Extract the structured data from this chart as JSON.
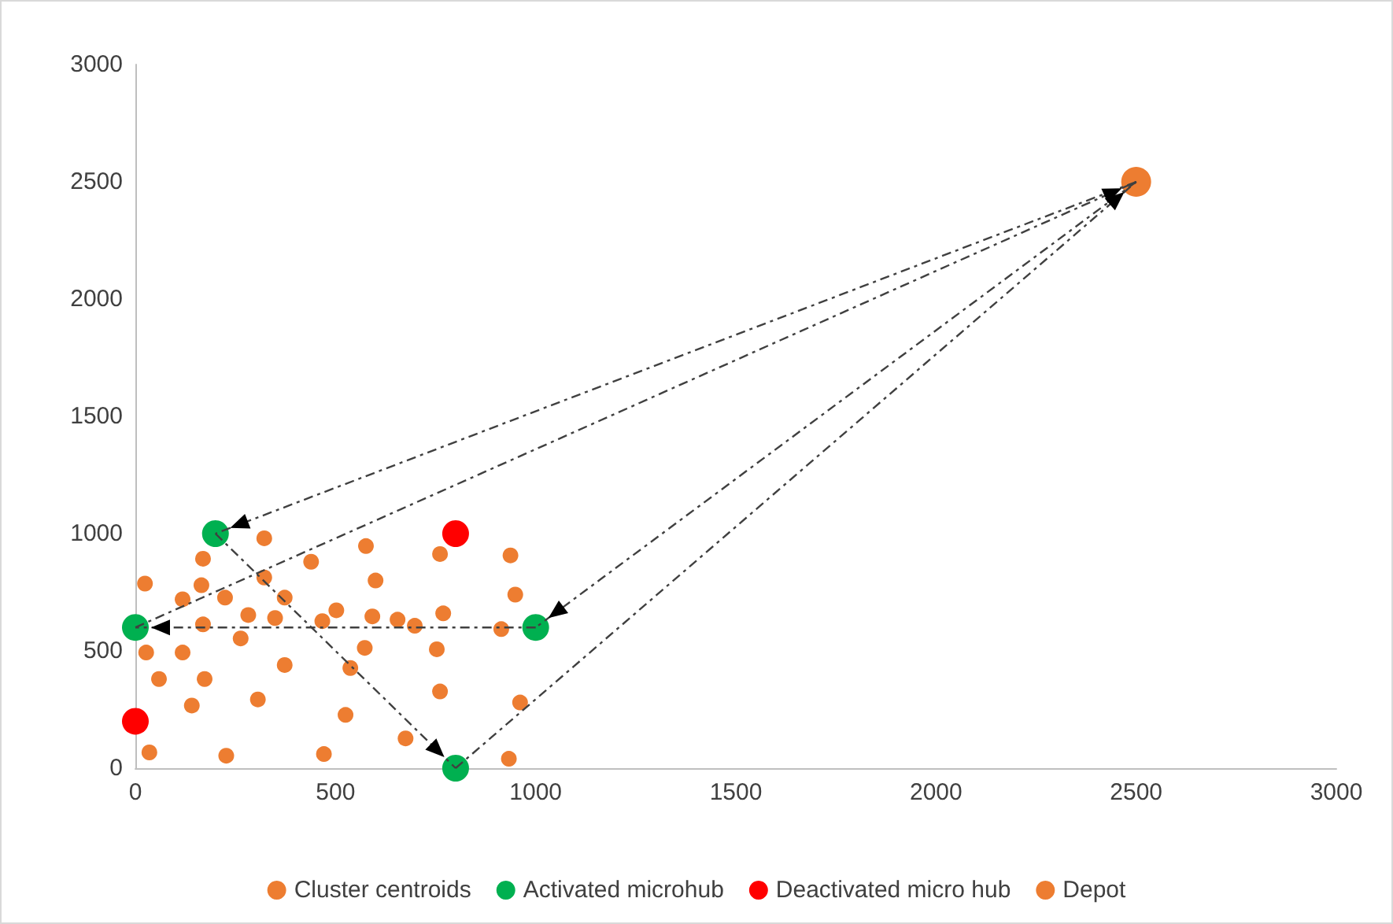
{
  "chart_data": {
    "type": "scatter",
    "xlim": [
      0,
      3000
    ],
    "ylim": [
      0,
      3000
    ],
    "xticks": [
      0,
      500,
      1000,
      1500,
      2000,
      2500,
      3000
    ],
    "yticks": [
      0,
      500,
      1000,
      1500,
      2000,
      2500,
      3000
    ],
    "grid": false,
    "legend": "bottom",
    "marker": "circle",
    "series": [
      {
        "name": "Cluster centroids",
        "color": "#ed7d31",
        "x": [
          322,
          169,
          439,
          24,
          165,
          322,
          118,
          224,
          373,
          282,
          349,
          169,
          null,
          263,
          27,
          118,
          373,
          59,
          173,
          141,
          306,
          35,
          227,
          576,
          761,
          937,
          600,
          949,
          502,
          467,
          592,
          655,
          698,
          769,
          914,
          573,
          753,
          537,
          761,
          961,
          525,
          675,
          471,
          933
        ],
        "values": [
          980,
          893,
          880,
          787,
          780,
          813,
          720,
          727,
          727,
          653,
          640,
          613,
          null,
          553,
          493,
          493,
          440,
          380,
          380,
          267,
          293,
          67,
          53,
          947,
          913,
          907,
          800,
          740,
          673,
          627,
          647,
          633,
          607,
          660,
          593,
          513,
          507,
          427,
          327,
          280,
          227,
          127,
          60,
          40
        ]
      },
      {
        "name": "Activated microhub",
        "color": "#00b050",
        "x": [
          200,
          0,
          1000,
          800
        ],
        "values": [
          1000,
          600,
          600,
          0
        ]
      },
      {
        "name": "Deactivated micro hub",
        "color": "#ff0000",
        "x": [
          800,
          0
        ],
        "values": [
          1000,
          200
        ]
      },
      {
        "name": "Depot",
        "color": "#ed7d31",
        "x": [
          2500
        ],
        "values": [
          2500
        ]
      },
      {
        "type": "line",
        "color": "#404040",
        "line_style": "dashed",
        "marker": "none",
        "x": [
          2500,
          200
        ],
        "values": [
          2500,
          1000
        ]
      },
      {
        "type": "line",
        "color": "#404040",
        "line_style": "dashed",
        "marker": "none",
        "x": [
          200,
          800
        ],
        "values": [
          1000,
          0
        ]
      },
      {
        "type": "line",
        "color": "#404040",
        "line_style": "dashed",
        "marker": "none",
        "x": [
          800,
          2500
        ],
        "values": [
          0,
          2500
        ]
      },
      {
        "type": "line",
        "color": "#404040",
        "line_style": "dashed",
        "marker": "none",
        "x": [
          2500,
          1000
        ],
        "values": [
          2500,
          600
        ]
      },
      {
        "type": "line",
        "color": "#404040",
        "line_style": "dashed",
        "marker": "none",
        "x": [
          1000,
          0
        ],
        "values": [
          600,
          600
        ]
      },
      {
        "type": "line",
        "color": "#404040",
        "line_style": "dashed",
        "marker": "none",
        "x": [
          0,
          2500
        ],
        "values": [
          600,
          2500
        ]
      }
    ]
  }
}
